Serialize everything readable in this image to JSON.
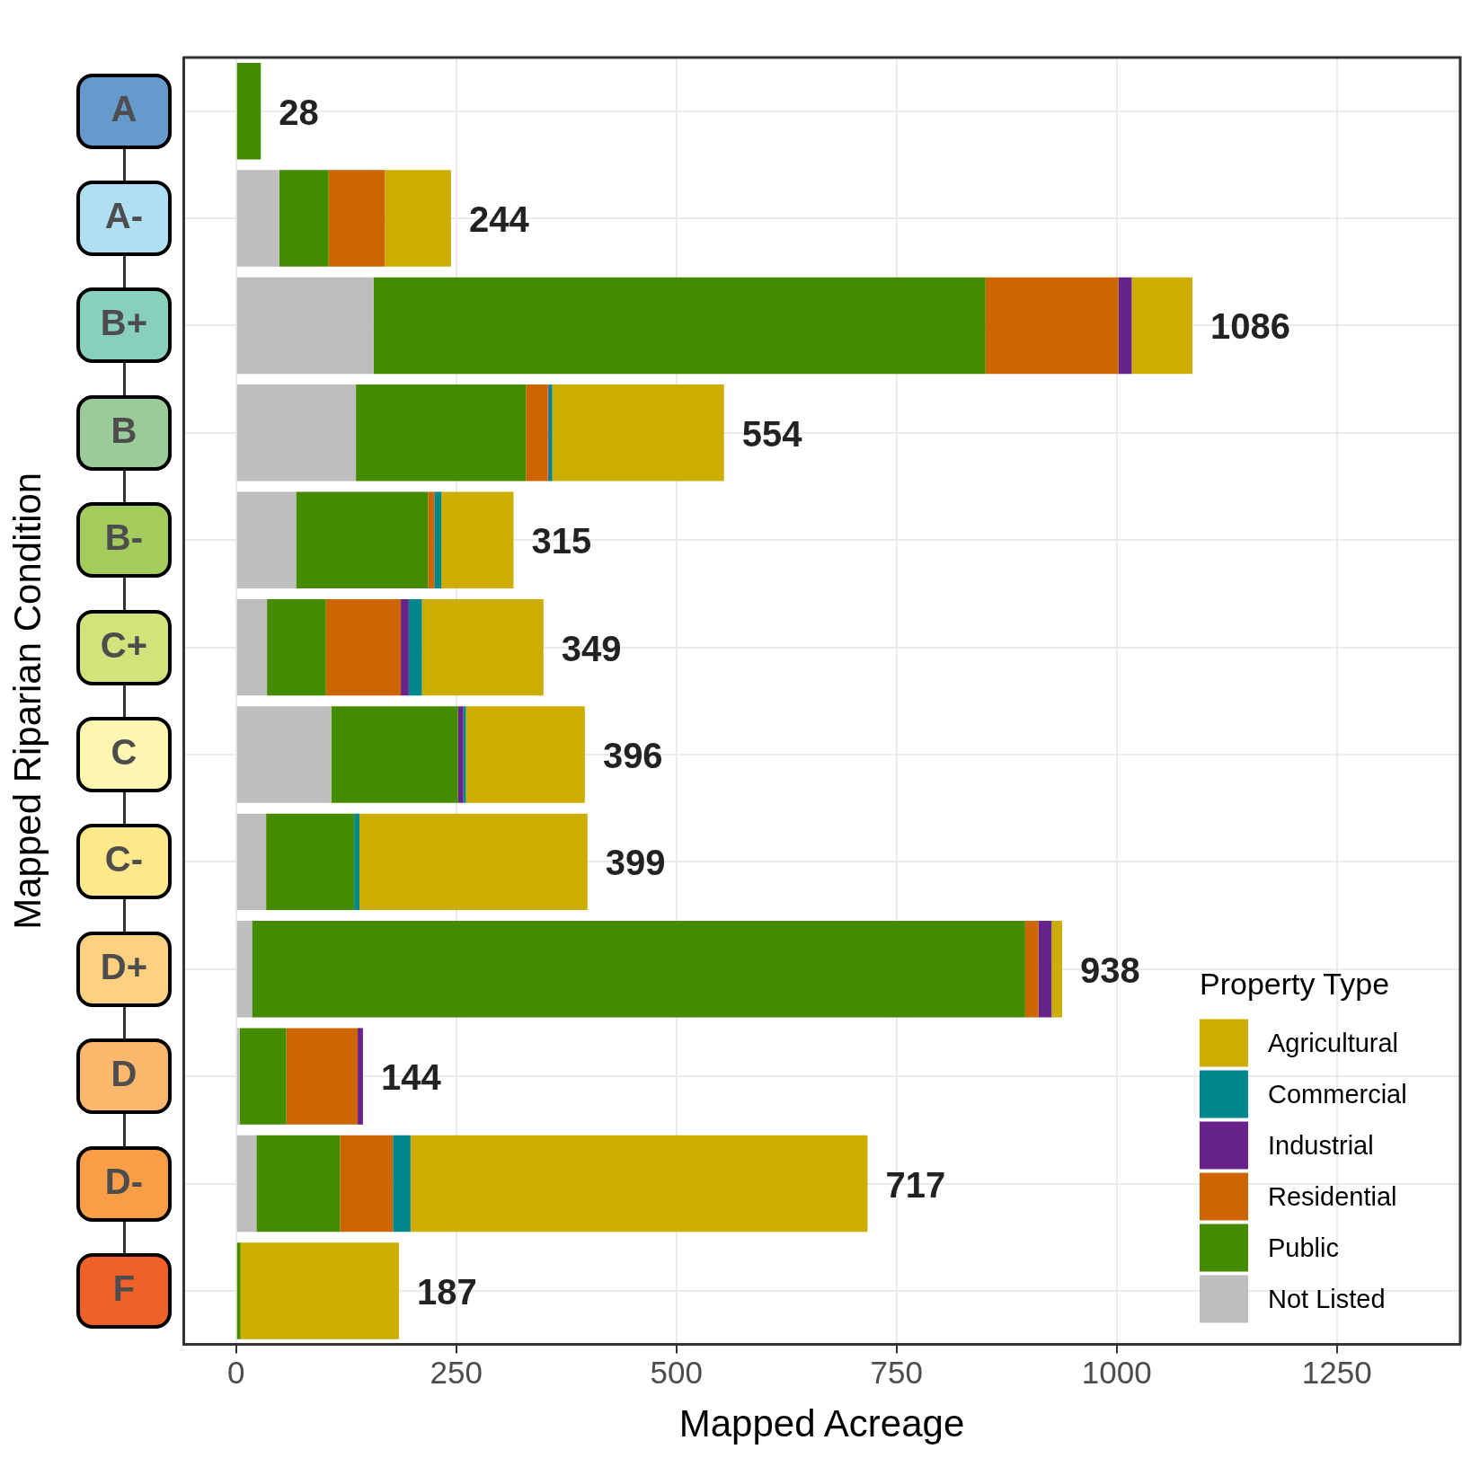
{
  "chart_data": {
    "type": "bar",
    "orientation": "horizontal",
    "stacked": true,
    "xlabel": "Mapped Acreage",
    "ylabel": "Mapped Riparian Condition",
    "legend_title": "Property Type",
    "categories": [
      "A",
      "A-",
      "B+",
      "B",
      "B-",
      "C+",
      "C",
      "C-",
      "D+",
      "D",
      "D-",
      "F"
    ],
    "series": [
      {
        "name": "Not Listed",
        "color": "#bebebe",
        "values": [
          0,
          49,
          156,
          136,
          68,
          35,
          108,
          34,
          18,
          4,
          23,
          null
        ]
      },
      {
        "name": "Public",
        "color": "#458b00",
        "values": [
          28,
          56,
          695,
          193,
          150,
          67,
          144,
          100,
          878,
          53,
          95,
          5
        ]
      },
      {
        "name": "Residential",
        "color": "#cd6600",
        "values": [
          0,
          64,
          151,
          25,
          7,
          85,
          0,
          0,
          15,
          81,
          60,
          0
        ]
      },
      {
        "name": "Industrial",
        "color": "#68228b",
        "values": [
          0,
          0,
          15,
          1,
          0,
          9,
          6,
          0,
          15,
          6,
          0,
          0
        ]
      },
      {
        "name": "Commercial",
        "color": "#00868b",
        "values": [
          0,
          0,
          0,
          4,
          8,
          15,
          3,
          6,
          0,
          0,
          20,
          0
        ]
      },
      {
        "name": "Agricultural",
        "color": "#cdad00",
        "values": [
          0,
          75,
          69,
          195,
          82,
          138,
          135,
          259,
          12,
          0,
          519,
          180
        ]
      }
    ],
    "totals": [
      "28",
      "244",
      "1086",
      "554",
      "315",
      "349",
      "396",
      "399",
      "938",
      "144",
      "717",
      "187"
    ],
    "xlim": [
      -60,
      1390
    ],
    "xticks": [
      0,
      250,
      500,
      750,
      1000,
      1250
    ],
    "grid": true,
    "legend": "bottom right"
  }
}
